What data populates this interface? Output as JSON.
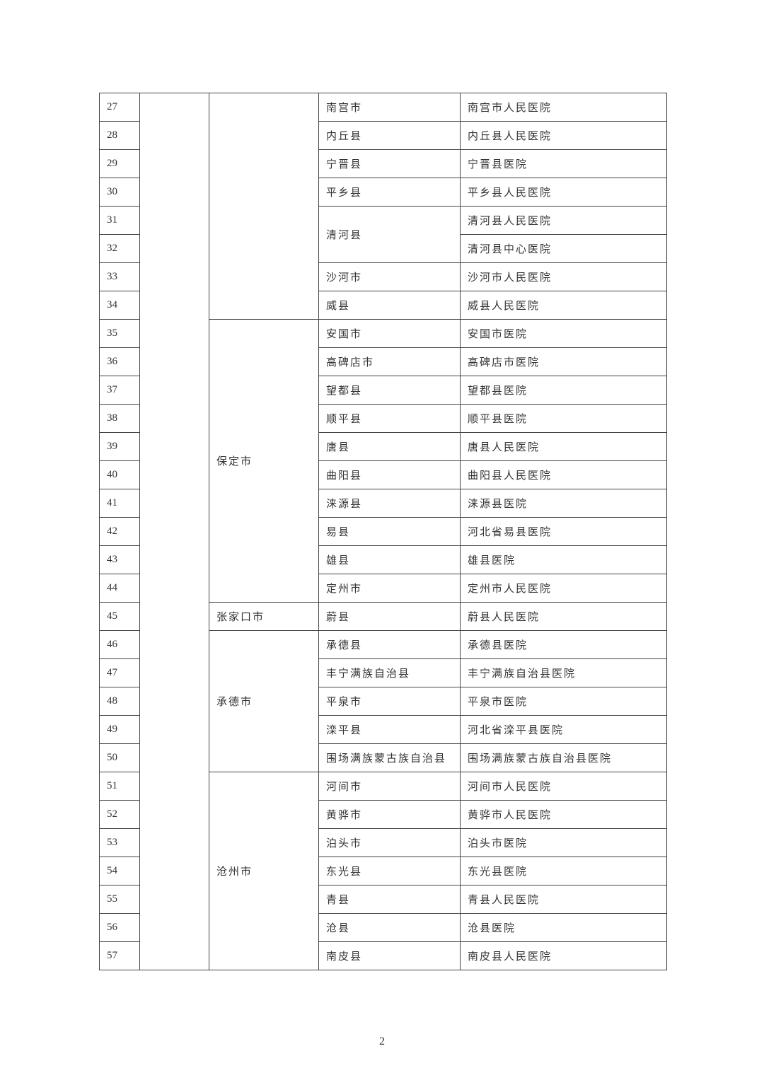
{
  "city_groups": [
    {
      "city": "",
      "rows": 8
    },
    {
      "city": "保定市",
      "rows": 10
    },
    {
      "city": "张家口市",
      "rows": 1
    },
    {
      "city": "承德市",
      "rows": 5
    },
    {
      "city": "沧州市",
      "rows": 7
    }
  ],
  "rows": [
    {
      "num": "27",
      "county": "南宫市",
      "hospital": "南宫市人民医院"
    },
    {
      "num": "28",
      "county": "内丘县",
      "hospital": "内丘县人民医院"
    },
    {
      "num": "29",
      "county": "宁晋县",
      "hospital": "宁晋县医院"
    },
    {
      "num": "30",
      "county": "平乡县",
      "hospital": "平乡县人民医院"
    },
    {
      "num": "31",
      "county": "清河县",
      "county_span": 2,
      "hospital": "清河县人民医院"
    },
    {
      "num": "32",
      "county": null,
      "hospital": "清河县中心医院"
    },
    {
      "num": "33",
      "county": "沙河市",
      "hospital": "沙河市人民医院"
    },
    {
      "num": "34",
      "county": "威县",
      "hospital": "威县人民医院"
    },
    {
      "num": "35",
      "county": "安国市",
      "hospital": "安国市医院"
    },
    {
      "num": "36",
      "county": "高碑店市",
      "hospital": "高碑店市医院"
    },
    {
      "num": "37",
      "county": "望都县",
      "hospital": "望都县医院"
    },
    {
      "num": "38",
      "county": "顺平县",
      "hospital": "顺平县医院"
    },
    {
      "num": "39",
      "county": "唐县",
      "hospital": "唐县人民医院"
    },
    {
      "num": "40",
      "county": "曲阳县",
      "hospital": "曲阳县人民医院"
    },
    {
      "num": "41",
      "county": "涞源县",
      "hospital": "涞源县医院"
    },
    {
      "num": "42",
      "county": "易县",
      "hospital": "河北省易县医院"
    },
    {
      "num": "43",
      "county": "雄县",
      "hospital": "雄县医院"
    },
    {
      "num": "44",
      "county": "定州市",
      "hospital": "定州市人民医院"
    },
    {
      "num": "45",
      "county": "蔚县",
      "hospital": "蔚县人民医院"
    },
    {
      "num": "46",
      "county": "承德县",
      "hospital": "承德县医院"
    },
    {
      "num": "47",
      "county": "丰宁满族自治县",
      "hospital": "丰宁满族自治县医院"
    },
    {
      "num": "48",
      "county": "平泉市",
      "hospital": "平泉市医院"
    },
    {
      "num": "49",
      "county": "滦平县",
      "hospital": "河北省滦平县医院"
    },
    {
      "num": "50",
      "county": "围场满族蒙古族自治县",
      "hospital": "围场满族蒙古族自治县医院"
    },
    {
      "num": "51",
      "county": "河间市",
      "hospital": "河间市人民医院"
    },
    {
      "num": "52",
      "county": "黄骅市",
      "hospital": "黄骅市人民医院"
    },
    {
      "num": "53",
      "county": "泊头市",
      "hospital": "泊头市医院"
    },
    {
      "num": "54",
      "county": "东光县",
      "hospital": "东光县医院"
    },
    {
      "num": "55",
      "county": "青县",
      "hospital": "青县人民医院"
    },
    {
      "num": "56",
      "county": "沧县",
      "hospital": "沧县医院"
    },
    {
      "num": "57",
      "county": "南皮县",
      "hospital": "南皮县人民医院"
    }
  ],
  "page_number": "2"
}
